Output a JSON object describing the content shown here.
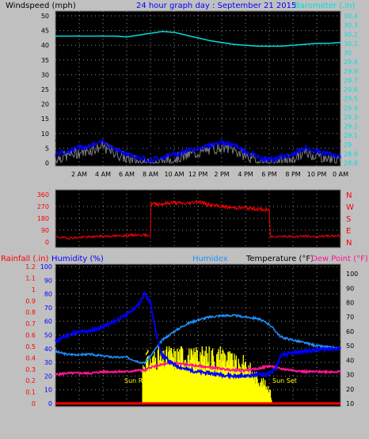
{
  "header": {
    "windspeed_label": "Windspeed (mph)",
    "graph_title": "24 hour graph day : September 21 2015",
    "barometer_label": "Barometer (.in)"
  },
  "lower_header": {
    "rainfall_label": "Rainfall (.in)",
    "humidity_label": "Humidity (%)",
    "humidex_label": "Humidex",
    "temperature_label": "Temperature (°F)",
    "dewpoint_label": "Dew Point (°F)"
  },
  "sun_labels": {
    "sunrise": "Sun Rise",
    "sunset": "Sun Set"
  },
  "colors": {
    "background": "#c0c0c0",
    "plot_bg": "#000000",
    "wind": "#0000ff",
    "gust": "#000000",
    "wind_gray": "#808080",
    "barometer": "#00e0e0",
    "direction": "#ff0000",
    "rainfall": "#ff0000",
    "humidity": "#0000ff",
    "humidex": "#1e90ff",
    "temperature": "#000000",
    "dewpoint": "#ff1493",
    "solar": "#ffff00"
  },
  "chart_data": [
    {
      "type": "line",
      "title": "24 hour graph day : September 21 2015",
      "x_ticks": [
        "2 AM",
        "4 AM",
        "6 AM",
        "8 AM",
        "10 AM",
        "12 PM",
        "2 PM",
        "4 PM",
        "6 PM",
        "8 PM",
        "10 PM",
        "0 AM"
      ],
      "x_range_hours": [
        0,
        24
      ],
      "grid": true,
      "left_axis": {
        "label": "Windspeed (mph)",
        "ticks": [
          "0",
          "5",
          "10",
          "15",
          "20",
          "25",
          "30",
          "35",
          "40",
          "45",
          "50"
        ],
        "range": [
          0,
          50
        ]
      },
      "right_axis": {
        "label": "Barometer (.in)",
        "ticks": [
          "28.8",
          "28.9",
          "29",
          "29.1",
          "29.2",
          "29.3",
          "29.4",
          "29.5",
          "29.6",
          "29.7",
          "29.8",
          "29.9",
          "30",
          "30.1",
          "30.2",
          "30.3",
          "30.4"
        ],
        "range": [
          28.8,
          30.4
        ]
      },
      "series": [
        {
          "name": "Windspeed (mph)",
          "hours": [
            0,
            1,
            2,
            3,
            4,
            5,
            6,
            7,
            8,
            9,
            10,
            11,
            12,
            13,
            14,
            15,
            16,
            17,
            18,
            19,
            20,
            21,
            22,
            23,
            24
          ],
          "values": [
            3,
            4,
            5,
            6,
            7,
            5,
            3,
            2,
            1,
            2,
            3,
            4,
            5,
            6,
            7,
            6,
            4,
            2,
            1,
            2,
            3,
            5,
            4,
            3,
            2
          ]
        },
        {
          "name": "Barometer (.in)",
          "hours": [
            0,
            1,
            2,
            3,
            4,
            5,
            6,
            7,
            8,
            9,
            10,
            11,
            12,
            13,
            14,
            15,
            16,
            17,
            18,
            19,
            20,
            21,
            22,
            23,
            24
          ],
          "values": [
            30.18,
            30.18,
            30.18,
            30.18,
            30.18,
            30.18,
            30.17,
            30.19,
            30.21,
            30.23,
            30.22,
            30.19,
            30.16,
            30.13,
            30.11,
            30.09,
            30.08,
            30.07,
            30.07,
            30.07,
            30.08,
            30.09,
            30.1,
            30.1,
            30.11
          ]
        }
      ]
    },
    {
      "type": "line",
      "title": "",
      "x_range_hours": [
        0,
        24
      ],
      "grid": true,
      "left_axis": {
        "ticks": [
          "0",
          "90",
          "180",
          "270",
          "360"
        ],
        "range": [
          0,
          360
        ]
      },
      "right_axis": {
        "ticks": [
          "N",
          "E",
          "S",
          "W",
          "N"
        ]
      },
      "series": [
        {
          "name": "Wind Direction",
          "hours": [
            0,
            1,
            2,
            3,
            4,
            5,
            6,
            7,
            8,
            8.05,
            9,
            10,
            11,
            12,
            13,
            14,
            15,
            16,
            17,
            18,
            18.1,
            19,
            20,
            21,
            22,
            23,
            24
          ],
          "values": [
            40,
            30,
            35,
            40,
            45,
            45,
            50,
            55,
            50,
            290,
            290,
            300,
            290,
            310,
            280,
            270,
            260,
            260,
            250,
            240,
            40,
            45,
            40,
            45,
            40,
            45,
            50
          ]
        }
      ]
    },
    {
      "type": "line",
      "title": "",
      "x_range_hours": [
        0,
        24
      ],
      "grid": true,
      "axes": {
        "rainfall": {
          "label": "Rainfall (.in)",
          "ticks": [
            "0",
            "0.1",
            "0.2",
            "0.3",
            "0.4",
            "0.5",
            "0.6",
            "0.7",
            "0.8",
            "0.9",
            "1",
            "1.1",
            "1.2"
          ],
          "range": [
            0,
            1.2
          ]
        },
        "humidity": {
          "label": "Humidity (%)",
          "ticks": [
            "0",
            "10",
            "20",
            "30",
            "40",
            "50",
            "60",
            "70",
            "80",
            "90",
            "100"
          ],
          "range": [
            0,
            100
          ]
        },
        "temperature": {
          "label": "Temperature (°F)",
          "ticks": [
            "10",
            "20",
            "30",
            "40",
            "50",
            "60",
            "70",
            "80",
            "90",
            "100"
          ],
          "range": [
            10,
            105
          ]
        }
      },
      "annotations": [
        "Sun Rise",
        "Sun Set"
      ],
      "series": [
        {
          "name": "Rainfall (.in)",
          "hours": [
            0,
            24
          ],
          "values": [
            0,
            0
          ]
        },
        {
          "name": "Humidity (%)",
          "hours": [
            0,
            1,
            2,
            3,
            4,
            5,
            6,
            7,
            7.5,
            8,
            8.5,
            9,
            10,
            11,
            12,
            13,
            14,
            15,
            16,
            17,
            18,
            18.5,
            19,
            20,
            21,
            22,
            23,
            24
          ],
          "values": [
            45,
            50,
            52,
            53,
            56,
            60,
            65,
            72,
            80,
            74,
            50,
            35,
            28,
            25,
            23,
            22,
            21,
            20,
            20,
            21,
            22,
            25,
            35,
            37,
            38,
            39,
            40,
            40
          ]
        },
        {
          "name": "Humidex",
          "hours": [
            0,
            1,
            2,
            3,
            4,
            5,
            6,
            7,
            7.5,
            8,
            9,
            10,
            11,
            12,
            13,
            14,
            15,
            16,
            17,
            18,
            19,
            20,
            21,
            22,
            23,
            24
          ],
          "values": [
            46,
            44,
            44,
            44,
            43,
            42,
            42,
            39,
            38,
            43,
            54,
            60,
            65,
            68,
            70,
            71,
            71,
            70,
            69,
            65,
            56,
            54,
            52,
            50,
            49,
            48
          ]
        },
        {
          "name": "Temperature (°F)",
          "hours": [
            0,
            1,
            2,
            3,
            4,
            5,
            6,
            7,
            7.5,
            8,
            9,
            10,
            11,
            12,
            13,
            14,
            15,
            16,
            17,
            18,
            19,
            20,
            21,
            22,
            23,
            24
          ],
          "values": [
            50,
            47,
            46,
            48,
            45,
            47,
            46,
            43,
            41,
            46,
            58,
            66,
            72,
            76,
            78,
            79,
            79,
            78,
            77,
            71,
            59,
            57,
            55,
            54,
            53,
            53
          ]
        },
        {
          "name": "Dew Point (°F)",
          "hours": [
            0,
            1,
            2,
            3,
            4,
            5,
            6,
            7,
            7.5,
            8,
            9,
            10,
            11,
            12,
            13,
            14,
            15,
            16,
            17,
            18,
            19,
            20,
            21,
            22,
            23,
            24
          ],
          "values": [
            30,
            31,
            31,
            31,
            32,
            32,
            32,
            33,
            33,
            35,
            37,
            38,
            37,
            36,
            35,
            34,
            33,
            33,
            34,
            36,
            34,
            33,
            32,
            32,
            32,
            32
          ]
        },
        {
          "name": "Solar",
          "hours": [
            7.3,
            7.6,
            8,
            8.5,
            9,
            9.5,
            10,
            10.5,
            11,
            11.5,
            12,
            12.5,
            13,
            13.5,
            14,
            14.5,
            15,
            15.5,
            16,
            16.5,
            17,
            17.5,
            18,
            18.2
          ],
          "values": [
            0.35,
            0.45,
            0.4,
            0.48,
            0.42,
            0.5,
            0.45,
            0.5,
            0.48,
            0.44,
            0.5,
            0.46,
            0.49,
            0.44,
            0.5,
            0.45,
            0.4,
            0.35,
            0.42,
            0.3,
            0.25,
            0.2,
            0.15,
            0.0
          ]
        }
      ]
    }
  ]
}
